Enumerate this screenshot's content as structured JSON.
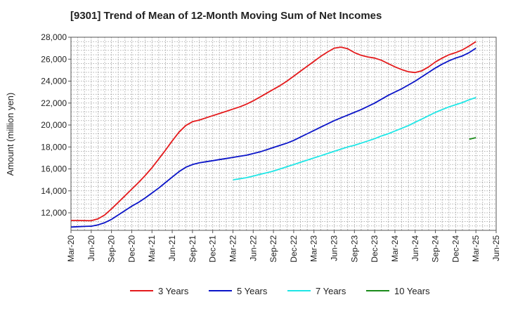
{
  "chart_data": {
    "type": "line",
    "title": "[9301]  Trend of Mean of 12-Month Moving Sum of Net Incomes",
    "ylabel": "Amount (million yen)",
    "xlabel": "",
    "ylim": [
      10400,
      28000
    ],
    "yticks": [
      12000,
      14000,
      16000,
      18000,
      20000,
      22000,
      24000,
      26000,
      28000
    ],
    "ytick_labels": [
      "12,000",
      "14,000",
      "16,000",
      "18,000",
      "20,000",
      "22,000",
      "24,000",
      "26,000",
      "28,000"
    ],
    "xticks": [
      "Mar-20",
      "Jun-20",
      "Sep-20",
      "Dec-20",
      "Mar-21",
      "Jun-21",
      "Sep-21",
      "Dec-21",
      "Mar-22",
      "Jun-22",
      "Sep-22",
      "Dec-22",
      "Mar-23",
      "Jun-23",
      "Sep-23",
      "Dec-23",
      "Mar-24",
      "Jun-24",
      "Sep-24",
      "Dec-24",
      "Mar-25",
      "Jun-25"
    ],
    "grid": "dotted",
    "legend_position": "bottom",
    "series": [
      {
        "name": "3 Years",
        "color": "#e41a1c",
        "x": [
          "Mar-20",
          "Apr-20",
          "May-20",
          "Jun-20",
          "Jul-20",
          "Aug-20",
          "Sep-20",
          "Oct-20",
          "Nov-20",
          "Dec-20",
          "Jan-21",
          "Feb-21",
          "Mar-21",
          "Apr-21",
          "May-21",
          "Jun-21",
          "Jul-21",
          "Aug-21",
          "Sep-21",
          "Oct-21",
          "Nov-21",
          "Dec-21",
          "Jan-22",
          "Feb-22",
          "Mar-22",
          "Apr-22",
          "May-22",
          "Jun-22",
          "Jul-22",
          "Aug-22",
          "Sep-22",
          "Oct-22",
          "Nov-22",
          "Dec-22",
          "Jan-23",
          "Feb-23",
          "Mar-23",
          "Apr-23",
          "May-23",
          "Jun-23",
          "Jul-23",
          "Aug-23",
          "Sep-23",
          "Oct-23",
          "Nov-23",
          "Dec-23",
          "Jan-24",
          "Feb-24",
          "Mar-24",
          "Apr-24",
          "May-24",
          "Jun-24",
          "Jul-24",
          "Aug-24",
          "Sep-24",
          "Oct-24",
          "Nov-24",
          "Dec-24",
          "Jan-25",
          "Feb-25",
          "Mar-25"
        ],
        "values": [
          11300,
          11300,
          11290,
          11280,
          11450,
          11800,
          12350,
          12950,
          13550,
          14150,
          14750,
          15400,
          16100,
          16900,
          17700,
          18550,
          19350,
          19950,
          20300,
          20450,
          20650,
          20850,
          21050,
          21250,
          21450,
          21650,
          21900,
          22200,
          22550,
          22900,
          23250,
          23600,
          24000,
          24450,
          24900,
          25350,
          25800,
          26250,
          26650,
          27000,
          27100,
          26950,
          26600,
          26350,
          26200,
          26100,
          25900,
          25600,
          25300,
          25050,
          24850,
          24780,
          24950,
          25300,
          25750,
          26100,
          26400,
          26600,
          26850,
          27200,
          27600
        ]
      },
      {
        "name": "5 Years",
        "color": "#0a14c8",
        "x": [
          "Mar-20",
          "Apr-20",
          "May-20",
          "Jun-20",
          "Jul-20",
          "Aug-20",
          "Sep-20",
          "Oct-20",
          "Nov-20",
          "Dec-20",
          "Jan-21",
          "Feb-21",
          "Mar-21",
          "Apr-21",
          "May-21",
          "Jun-21",
          "Jul-21",
          "Aug-21",
          "Sep-21",
          "Oct-21",
          "Nov-21",
          "Dec-21",
          "Jan-22",
          "Feb-22",
          "Mar-22",
          "Apr-22",
          "May-22",
          "Jun-22",
          "Jul-22",
          "Aug-22",
          "Sep-22",
          "Oct-22",
          "Nov-22",
          "Dec-22",
          "Jan-23",
          "Feb-23",
          "Mar-23",
          "Apr-23",
          "May-23",
          "Jun-23",
          "Jul-23",
          "Aug-23",
          "Sep-23",
          "Oct-23",
          "Nov-23",
          "Dec-23",
          "Jan-24",
          "Feb-24",
          "Mar-24",
          "Apr-24",
          "May-24",
          "Jun-24",
          "Jul-24",
          "Aug-24",
          "Sep-24",
          "Oct-24",
          "Nov-24",
          "Dec-24",
          "Jan-25",
          "Feb-25",
          "Mar-25"
        ],
        "values": [
          10700,
          10730,
          10760,
          10780,
          10900,
          11100,
          11400,
          11800,
          12200,
          12600,
          12950,
          13350,
          13800,
          14250,
          14750,
          15250,
          15750,
          16150,
          16400,
          16550,
          16650,
          16750,
          16850,
          16950,
          17050,
          17150,
          17250,
          17400,
          17550,
          17750,
          17950,
          18150,
          18350,
          18600,
          18900,
          19200,
          19500,
          19800,
          20100,
          20400,
          20650,
          20900,
          21150,
          21400,
          21700,
          22000,
          22350,
          22700,
          23000,
          23300,
          23650,
          24000,
          24400,
          24800,
          25200,
          25550,
          25850,
          26100,
          26300,
          26600,
          27000
        ]
      },
      {
        "name": "7 Years",
        "color": "#1ee6e6",
        "x": [
          "Mar-22",
          "Apr-22",
          "May-22",
          "Jun-22",
          "Jul-22",
          "Aug-22",
          "Sep-22",
          "Oct-22",
          "Nov-22",
          "Dec-22",
          "Jan-23",
          "Feb-23",
          "Mar-23",
          "Apr-23",
          "May-23",
          "Jun-23",
          "Jul-23",
          "Aug-23",
          "Sep-23",
          "Oct-23",
          "Nov-23",
          "Dec-23",
          "Jan-24",
          "Feb-24",
          "Mar-24",
          "Apr-24",
          "May-24",
          "Jun-24",
          "Jul-24",
          "Aug-24",
          "Sep-24",
          "Oct-24",
          "Nov-24",
          "Dec-24",
          "Jan-25",
          "Feb-25",
          "Mar-25"
        ],
        "values": [
          15000,
          15100,
          15200,
          15350,
          15500,
          15650,
          15800,
          16000,
          16200,
          16400,
          16600,
          16800,
          17000,
          17200,
          17400,
          17600,
          17800,
          18000,
          18150,
          18350,
          18550,
          18750,
          19000,
          19200,
          19450,
          19700,
          19950,
          20250,
          20550,
          20850,
          21150,
          21400,
          21650,
          21850,
          22050,
          22300,
          22500
        ]
      },
      {
        "name": "10 Years",
        "color": "#1a8a1a",
        "x": [
          "Feb-25",
          "Mar-25"
        ],
        "values": [
          18700,
          18850
        ]
      }
    ]
  }
}
